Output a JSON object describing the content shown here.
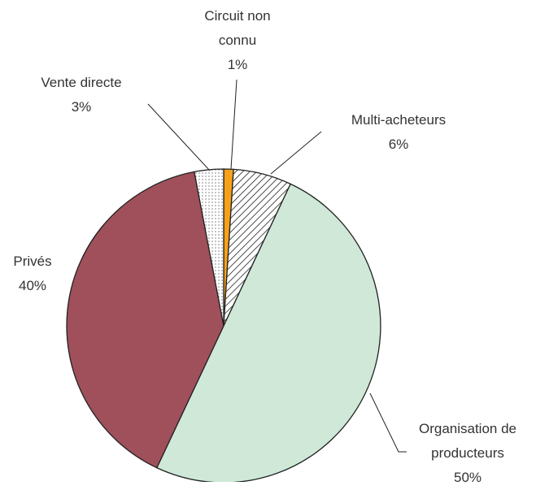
{
  "chart_data": {
    "type": "pie",
    "categories": [
      "Circuit non connu",
      "Multi-acheteurs",
      "Organisation de producteurs",
      "Privés",
      "Vente directe"
    ],
    "values": [
      1,
      6,
      50,
      40,
      3
    ],
    "value_labels": [
      "1%",
      "6%",
      "50%",
      "40%",
      "3%"
    ],
    "colors": [
      "#f7a11a",
      "#ffffff",
      "#cfe8d8",
      "#a0505b",
      "#ffffff"
    ],
    "patterns": [
      null,
      "hatch",
      null,
      null,
      "dots"
    ]
  }
}
